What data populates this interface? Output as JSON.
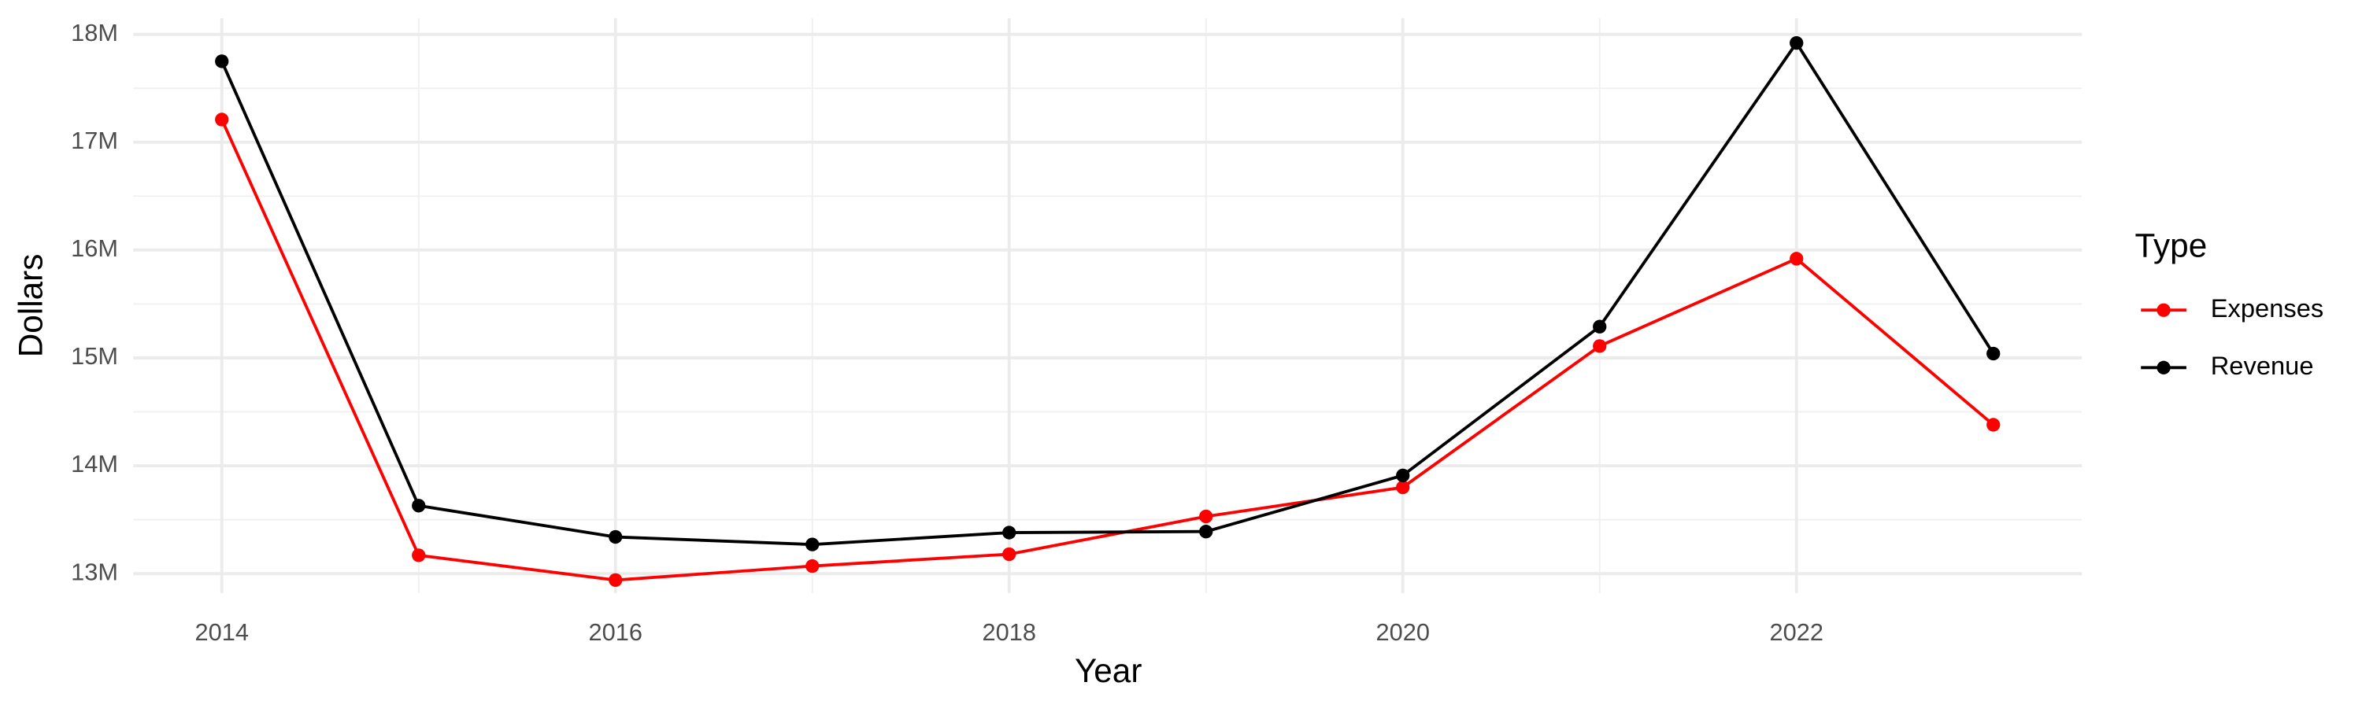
{
  "chart_data": {
    "type": "line",
    "x_label": "Year",
    "y_label": "Dollars",
    "legend_title": "Type",
    "legend_position": "right",
    "grid": true,
    "x": [
      2014,
      2015,
      2016,
      2017,
      2018,
      2019,
      2020,
      2021,
      2022,
      2023
    ],
    "series": [
      {
        "name": "Expenses",
        "color": "#ff0000",
        "values": [
          17210000,
          13170000,
          12940000,
          13070000,
          13180000,
          13530000,
          13800000,
          15110000,
          15920000,
          14380000
        ]
      },
      {
        "name": "Revenue",
        "color": "#000000",
        "values": [
          17750000,
          13630000,
          13340000,
          13270000,
          13380000,
          13390000,
          13910000,
          15290000,
          17920000,
          15040000
        ]
      }
    ],
    "xlim": [
      2013.55,
      2023.45
    ],
    "xticks": [
      2014,
      2016,
      2018,
      2020,
      2022
    ],
    "ylim": [
      12820000,
      18150000
    ],
    "yticks": [
      {
        "value": 13000000,
        "label": "13M"
      },
      {
        "value": 14000000,
        "label": "14M"
      },
      {
        "value": 15000000,
        "label": "15M"
      },
      {
        "value": 16000000,
        "label": "16M"
      },
      {
        "value": 17000000,
        "label": "17M"
      },
      {
        "value": 18000000,
        "label": "18M"
      }
    ]
  }
}
